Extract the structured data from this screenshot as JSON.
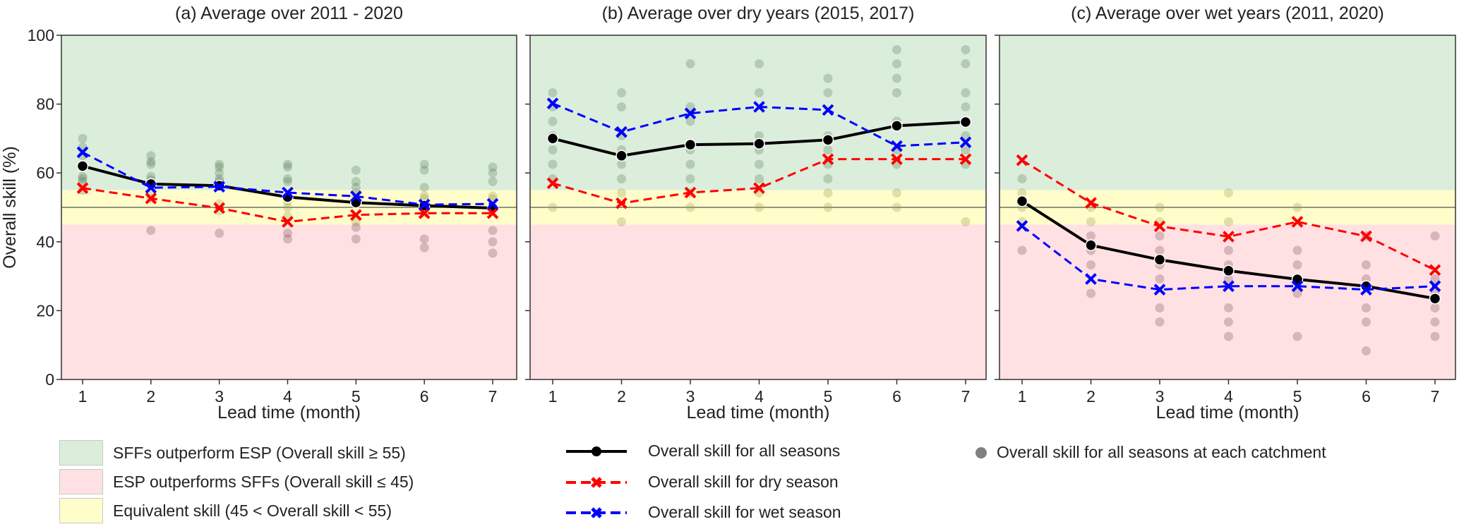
{
  "chart_data": [
    {
      "type": "line",
      "title": "(a) Average over 2011 - 2020",
      "xlabel": "Lead time (month)",
      "ylabel": "Overall skill (%)",
      "x": [
        1,
        2,
        3,
        4,
        5,
        6,
        7
      ],
      "ylim": [
        0,
        100
      ],
      "yticks": [
        0,
        20,
        40,
        60,
        80,
        100
      ],
      "reference_line": 50,
      "series": [
        {
          "name": "Overall skill for all seasons",
          "values": [
            62.0,
            56.8,
            56.3,
            53.0,
            51.4,
            50.5,
            49.8
          ]
        },
        {
          "name": "Overall skill for dry season",
          "values": [
            55.6,
            52.6,
            49.8,
            45.8,
            47.8,
            48.3,
            48.3
          ]
        },
        {
          "name": "Overall skill for wet season",
          "values": [
            66.0,
            55.7,
            56.0,
            54.3,
            53.2,
            50.8,
            51.0
          ]
        }
      ],
      "catchments": [
        [
          70,
          67.5,
          65,
          59,
          58.3,
          57.5,
          55
        ],
        [
          65,
          63.3,
          62.5,
          59,
          58,
          56.5,
          53.5,
          52.5,
          43.3
        ],
        [
          62.5,
          61.7,
          60,
          58.3,
          57.5,
          56.5,
          51,
          49,
          42.5
        ],
        [
          62.5,
          61.7,
          58.3,
          57.5,
          51.7,
          50,
          47.5,
          42.5,
          40.8
        ],
        [
          60.8,
          57.5,
          55.8,
          54.2,
          53.3,
          45.8,
          44.2,
          40.8
        ],
        [
          62.5,
          60.8,
          55.8,
          53.3,
          52.5,
          48.3,
          40.8,
          38.3
        ],
        [
          61.7,
          60,
          57.5,
          53.3,
          52.5,
          43.3,
          40,
          36.7
        ]
      ]
    },
    {
      "type": "line",
      "title": "(b) Average over dry years (2015, 2017)",
      "xlabel": "Lead time (month)",
      "ylabel": "",
      "x": [
        1,
        2,
        3,
        4,
        5,
        6,
        7
      ],
      "ylim": [
        0,
        100
      ],
      "yticks": [
        0,
        20,
        40,
        60,
        80,
        100
      ],
      "reference_line": 50,
      "series": [
        {
          "name": "Overall skill for all seasons",
          "values": [
            70.0,
            65.0,
            68.2,
            68.5,
            69.6,
            73.7,
            74.8
          ]
        },
        {
          "name": "Overall skill for dry season",
          "values": [
            57.0,
            51.2,
            54.3,
            55.6,
            64.0,
            64.0,
            64.0
          ]
        },
        {
          "name": "Overall skill for wet season",
          "values": [
            80.2,
            71.9,
            77.3,
            79.2,
            78.3,
            67.8,
            68.9
          ]
        }
      ],
      "catchments": [
        [
          83.3,
          79.2,
          75,
          70.8,
          66.7,
          62.5,
          58.3,
          50
        ],
        [
          83.3,
          79.2,
          70.8,
          66.7,
          62.5,
          58.3,
          54.2,
          45.8
        ],
        [
          91.7,
          79.2,
          75,
          66.7,
          62.5,
          58.3,
          54.2,
          50
        ],
        [
          91.7,
          83.3,
          70.8,
          66.7,
          62.5,
          58.3,
          54.2,
          50
        ],
        [
          87.5,
          83.3,
          70.8,
          66.7,
          62.5,
          58.3,
          54.2,
          50
        ],
        [
          95.8,
          91.7,
          87.5,
          83.3,
          75,
          66.7,
          62.5,
          54.2,
          50
        ],
        [
          95.8,
          91.7,
          83.3,
          79.2,
          70.8,
          66.7,
          62.5,
          45.8
        ]
      ]
    },
    {
      "type": "line",
      "title": "(c) Average over wet years (2011, 2020)",
      "xlabel": "Lead time (month)",
      "ylabel": "",
      "x": [
        1,
        2,
        3,
        4,
        5,
        6,
        7
      ],
      "ylim": [
        0,
        100
      ],
      "yticks": [
        0,
        20,
        40,
        60,
        80,
        100
      ],
      "reference_line": 50,
      "series": [
        {
          "name": "Overall skill for all seasons",
          "values": [
            51.8,
            39.0,
            34.8,
            31.6,
            29.1,
            27.1,
            23.5
          ]
        },
        {
          "name": "Overall skill for dry season",
          "values": [
            63.7,
            51.3,
            44.5,
            41.5,
            45.8,
            41.6,
            31.8
          ]
        },
        {
          "name": "Overall skill for wet season",
          "values": [
            44.6,
            29.2,
            26.1,
            27.1,
            27.1,
            26.1,
            27.1
          ]
        }
      ],
      "catchments": [
        [
          58.3,
          54.2,
          50,
          45.8,
          37.5
        ],
        [
          50,
          45.8,
          41.7,
          37.5,
          33.3,
          25
        ],
        [
          50,
          45.8,
          41.7,
          37.5,
          33.3,
          29.2,
          20.8,
          16.7
        ],
        [
          54.2,
          45.8,
          37.5,
          33.3,
          29.2,
          20.8,
          16.7,
          12.5
        ],
        [
          50,
          37.5,
          33.3,
          25,
          12.5
        ],
        [
          41.7,
          33.3,
          29.2,
          20.8,
          16.7,
          8.3
        ],
        [
          41.7,
          29.2,
          25,
          20.8,
          16.7,
          12.5
        ]
      ]
    }
  ],
  "bands": [
    {
      "label": "SFFs outperform ESP (Overall skill ≥ 55)",
      "from": 55,
      "to": 100,
      "color": "#dbeedb"
    },
    {
      "label": "ESP outperforms SFFs (Overall skill ≤ 45)",
      "from": 0,
      "to": 45,
      "color": "#ffe1e3"
    },
    {
      "label": "Equivalent skill (45 < Overall skill < 55)",
      "from": 45,
      "to": 55,
      "color": "#fffdca"
    }
  ],
  "series_styles": [
    {
      "name": "Overall skill for all seasons",
      "color": "#000000",
      "marker": "circle",
      "dash": "solid"
    },
    {
      "name": "Overall skill for dry season",
      "color": "#ff0000",
      "marker": "x",
      "dash": "dashed"
    },
    {
      "name": "Overall skill for wet season",
      "color": "#0000ff",
      "marker": "x",
      "dash": "dashed"
    }
  ],
  "catchment_legend": {
    "label": "Overall skill for all seasons at each catchment",
    "color": "#808080"
  },
  "legend": {
    "bands": [
      "SFFs outperform ESP (Overall skill ≥ 55)",
      "ESP outperforms SFFs (Overall skill ≤ 45)",
      "Equivalent skill (45 < Overall skill < 55)"
    ],
    "lines": [
      "Overall skill for all seasons",
      "Overall skill for dry season",
      "Overall skill for wet season"
    ],
    "dots": "Overall skill for all seasons at each catchment"
  }
}
